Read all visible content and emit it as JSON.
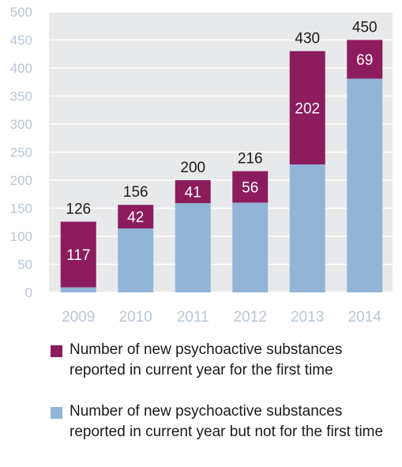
{
  "chart_data": {
    "type": "bar",
    "stacked": true,
    "categories": [
      "2009",
      "2010",
      "2011",
      "2012",
      "2013",
      "2014"
    ],
    "series": [
      {
        "name": "Number of new psychoactive substances reported in current year but not for the first time",
        "values": [
          9,
          114,
          159,
          160,
          228,
          381
        ],
        "color": "#92b4d6"
      },
      {
        "name": "Number of new psychoactive substances reported in current year for the first time",
        "values": [
          117,
          42,
          41,
          56,
          202,
          69
        ],
        "color": "#8c1c5e"
      }
    ],
    "totals": [
      126,
      156,
      200,
      216,
      430,
      450
    ],
    "ylim": [
      0,
      500
    ],
    "yticks": [
      0,
      50,
      100,
      150,
      200,
      250,
      300,
      350,
      400,
      450,
      500
    ],
    "grid": true,
    "plot_background": "#e8e9eb",
    "grid_color": "#ffffff",
    "tick_label_color": "#b9c6d6",
    "legend_position": "bottom",
    "title": "",
    "xlabel": "",
    "ylabel": ""
  }
}
